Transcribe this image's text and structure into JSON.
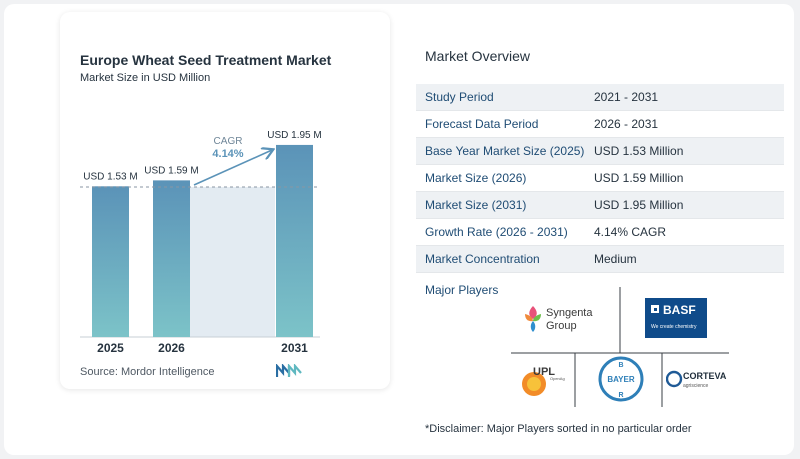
{
  "chart": {
    "title": "Europe Wheat Seed Treatment Market",
    "subtitle": "Market Size in USD Million",
    "source": "Source:  Mordor Intelligence",
    "cagr_label": "CAGR",
    "cagr_value": "4.14%"
  },
  "chart_data": {
    "type": "bar",
    "categories": [
      "2025",
      "2026",
      "2031"
    ],
    "values": [
      1.53,
      1.59,
      1.95
    ],
    "data_labels": [
      "USD 1.53 M",
      "USD 1.59 M",
      "USD 1.95 M"
    ],
    "title": "Europe Wheat Seed Treatment Market",
    "subtitle": "Market Size in USD Million",
    "xlabel": "",
    "ylabel": "",
    "ylim": [
      0,
      1.95
    ],
    "grid": false,
    "colors": [
      "#5b93b8",
      "#7cc3c8"
    ]
  },
  "overview": {
    "title": "Market Overview",
    "rows": [
      {
        "label": "Study Period",
        "value": "2021 - 2031"
      },
      {
        "label": "Forecast Data Period",
        "value": "2026 - 2031"
      },
      {
        "label": "Base Year Market Size (2025)",
        "value": "USD 1.53 Million"
      },
      {
        "label": "Market Size (2026)",
        "value": "USD 1.59 Million"
      },
      {
        "label": "Market Size (2031)",
        "value": "USD 1.95 Million"
      },
      {
        "label": "Growth Rate (2026 - 2031)",
        "value": "4.14% CAGR"
      },
      {
        "label": "Market Concentration",
        "value": "Medium"
      }
    ]
  },
  "players": {
    "title": "Major Players",
    "syngenta_line1": "Syngenta",
    "syngenta_line2": "Group",
    "basf_name": "BASF",
    "basf_tag": "We create chemistry",
    "upl_name": "UPL",
    "upl_tag": "OpenAg",
    "bayer_name": "BAYER",
    "corteva_name": "CORTEVA",
    "corteva_tag": "agriscience"
  },
  "disclaimer": "*Disclaimer: Major Players sorted in no particular order"
}
